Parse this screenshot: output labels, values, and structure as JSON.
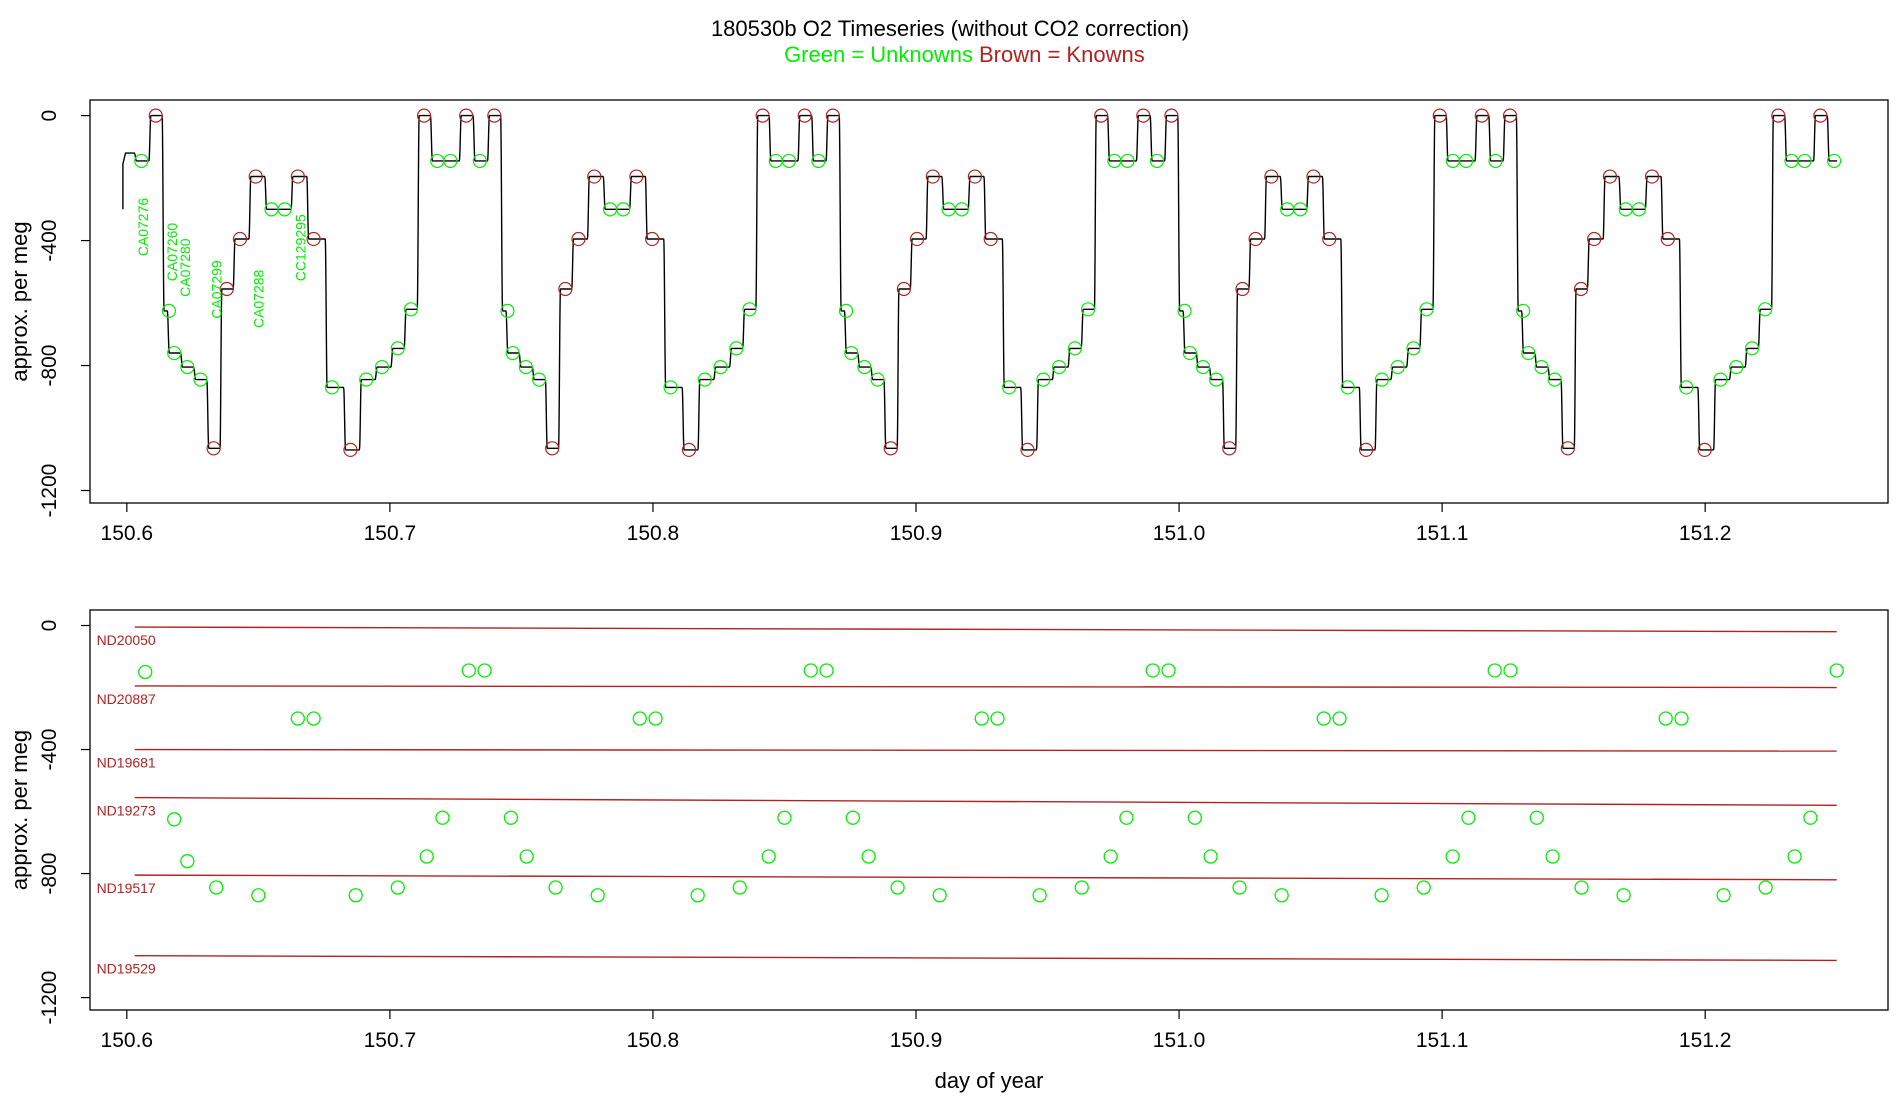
{
  "title": "180530b   O2 Timeseries (without CO2 correction)",
  "subtitle_green": "Green = Unknowns",
  "subtitle_brown": "Brown = Knowns",
  "colors": {
    "unknown": "#00ee00",
    "known": "#b22222",
    "trace": "#000000",
    "axis": "#000000"
  },
  "chart_data": [
    {
      "type": "line",
      "panel": "top",
      "ylabel": "approx. per meg",
      "xlabel": "",
      "xlim": [
        150.586,
        151.2695
      ],
      "ylim": [
        -1240,
        50
      ],
      "xticks": [
        "150.6",
        "150.7",
        "150.8",
        "150.9",
        "151.0",
        "151.1",
        "151.2"
      ],
      "yticks": [
        "0",
        "-400",
        "-800",
        "-1200"
      ],
      "grid": false,
      "cycle_start": 150.6055,
      "cycle_period": 0.1287,
      "trace_end": 151.2505,
      "sequence_x_offsets": [
        0,
        0.0055,
        0.0105,
        0.0125,
        0.0175,
        0.0225,
        0.0275,
        0.0325,
        0.0375,
        0.0435,
        0.0495,
        0.0545,
        0.0595,
        0.0655,
        0.0725,
        0.0795,
        0.0855,
        0.0915,
        0.0975,
        0.1025,
        0.1075,
        0.1125,
        0.1175,
        0.1235
      ],
      "sequence_levels": [
        -145,
        0,
        -625,
        -760,
        -805,
        -845,
        -1065,
        -555,
        -395,
        -195,
        -300,
        -300,
        -195,
        -395,
        -870,
        -1070,
        -845,
        -805,
        -745,
        -620,
        0,
        -145,
        -145,
        0
      ],
      "sequence_kinds": [
        "u",
        "k",
        "u",
        "u",
        "u",
        "u",
        "k",
        "k",
        "k",
        "k",
        "u",
        "u",
        "k",
        "k",
        "u",
        "k",
        "u",
        "u",
        "u",
        "u",
        "k",
        "u",
        "u",
        "k"
      ],
      "annotations": [
        {
          "text": "CA07276",
          "x": 150.608,
          "y": -450
        },
        {
          "text": "CA07260",
          "x": 150.619,
          "y": -530
        },
        {
          "text": "CA07280",
          "x": 150.624,
          "y": -580
        },
        {
          "text": "CA07299",
          "x": 150.636,
          "y": -650
        },
        {
          "text": "CA07288",
          "x": 150.652,
          "y": -680
        },
        {
          "text": "CC129295",
          "x": 150.668,
          "y": -530
        }
      ]
    },
    {
      "type": "scatter",
      "panel": "bottom",
      "ylabel": "approx. per meg",
      "xlabel": "day of year",
      "xlim": [
        150.586,
        151.2695
      ],
      "ylim": [
        -1240,
        50
      ],
      "xticks": [
        "150.6",
        "150.7",
        "150.8",
        "150.9",
        "151.0",
        "151.1",
        "151.2"
      ],
      "yticks": [
        "0",
        "-400",
        "-800",
        "-1200"
      ],
      "grid": false,
      "knowns": [
        {
          "name": "ND20050",
          "x_start": 150.603,
          "x_end": 151.25,
          "y_start": -5,
          "y_end": -20
        },
        {
          "name": "ND20887",
          "x_start": 150.603,
          "x_end": 151.25,
          "y_start": -195,
          "y_end": -200
        },
        {
          "name": "ND19681",
          "x_start": 150.603,
          "x_end": 151.25,
          "y_start": -400,
          "y_end": -405
        },
        {
          "name": "ND19273",
          "x_start": 150.603,
          "x_end": 151.25,
          "y_start": -555,
          "y_end": -580
        },
        {
          "name": "ND19517",
          "x_start": 150.603,
          "x_end": 151.25,
          "y_start": -805,
          "y_end": -820
        },
        {
          "name": "ND19529",
          "x_start": 150.603,
          "x_end": 151.25,
          "y_start": -1065,
          "y_end": -1080
        }
      ],
      "unknowns_x": [
        150.607,
        150.618,
        150.623,
        150.634,
        150.65,
        150.665,
        150.671,
        150.687,
        150.703,
        150.714,
        150.72,
        150.73,
        150.736,
        150.746,
        150.752,
        150.763,
        150.779,
        150.795,
        150.801,
        150.817,
        150.833,
        150.844,
        150.85,
        150.86,
        150.866,
        150.876,
        150.882,
        150.893,
        150.909,
        150.925,
        150.931,
        150.947,
        150.963,
        150.974,
        150.98,
        150.99,
        150.996,
        151.006,
        151.012,
        151.023,
        151.039,
        151.055,
        151.061,
        151.077,
        151.093,
        151.104,
        151.11,
        151.12,
        151.126,
        151.136,
        151.142,
        151.153,
        151.169,
        151.185,
        151.191,
        151.207,
        151.223,
        151.234,
        151.24,
        151.25
      ],
      "unknowns_y": [
        -150,
        -625,
        -760,
        -845,
        -870,
        -300,
        -300,
        -870,
        -845,
        -745,
        -620,
        -145,
        -145,
        -620,
        -745,
        -845,
        -870,
        -300,
        -300,
        -870,
        -845,
        -745,
        -620,
        -145,
        -145,
        -620,
        -745,
        -845,
        -870,
        -300,
        -300,
        -870,
        -845,
        -745,
        -620,
        -145,
        -145,
        -620,
        -745,
        -845,
        -870,
        -300,
        -300,
        -870,
        -845,
        -745,
        -620,
        -145,
        -145,
        -620,
        -745,
        -845,
        -870,
        -300,
        -300,
        -870,
        -845,
        -745,
        -620,
        -145
      ]
    }
  ]
}
